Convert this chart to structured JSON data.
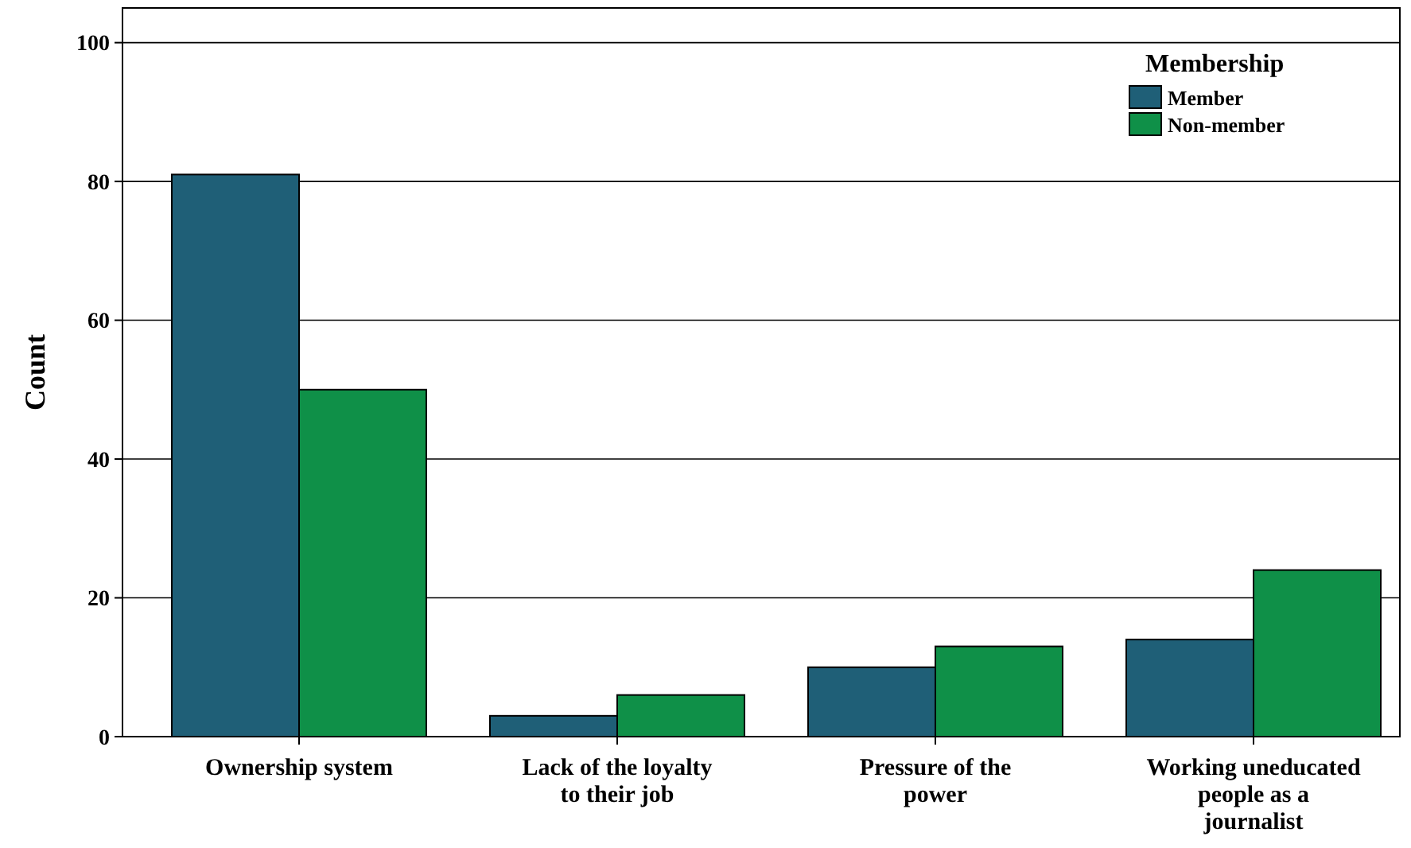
{
  "chart_data": {
    "type": "bar",
    "ylabel": "Count",
    "legend_title": "Membership",
    "legend": "top right",
    "grid": "y",
    "categories": [
      "Ownership system",
      "Lack of the loyalty to their job",
      "Pressure of the power",
      "Working uneducated people as a journalist"
    ],
    "series": [
      {
        "name": "Member",
        "color": "#1f5f77",
        "values": [
          81,
          3,
          10,
          14
        ]
      },
      {
        "name": "Non-member",
        "color": "#0f9048",
        "values": [
          50,
          6,
          13,
          24
        ]
      }
    ],
    "ylim": [
      0,
      105
    ],
    "yticks": [
      0,
      20,
      40,
      60,
      80,
      100
    ]
  }
}
